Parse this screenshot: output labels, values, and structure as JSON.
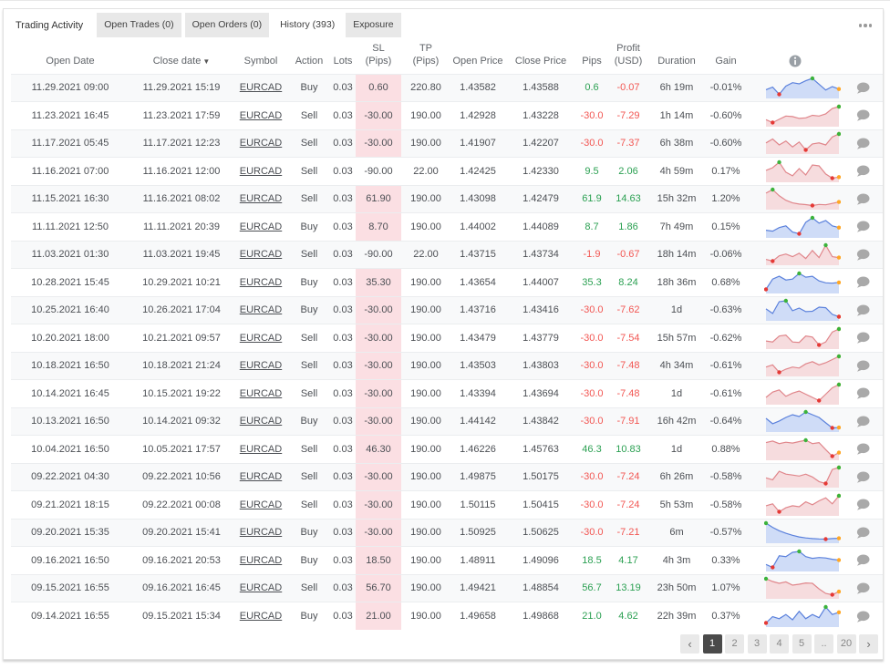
{
  "tabbar": {
    "title": "Trading Activity",
    "tabs": [
      {
        "label": "Open Trades (0)",
        "active": false
      },
      {
        "label": "Open Orders (0)",
        "active": false
      },
      {
        "label": "History (393)",
        "active": true
      },
      {
        "label": "Exposure",
        "active": false
      }
    ]
  },
  "table": {
    "headers": {
      "open_date": "Open Date",
      "close_date": "Close date",
      "symbol": "Symbol",
      "action": "Action",
      "lots": "Lots",
      "sl": "SL\n(Pips)",
      "tp": "TP\n(Pips)",
      "open_price": "Open Price",
      "close_price": "Close Price",
      "pips": "Pips",
      "profit": "Profit\n(USD)",
      "duration": "Duration",
      "gain": "Gain"
    },
    "sort_indicator_on": "close_date",
    "rows": [
      {
        "open_date": "11.29.2021 09:00",
        "close_date": "11.29.2021 15:19",
        "symbol": "EURCAD",
        "action": "Buy",
        "lots": "0.03",
        "sl": "0.60",
        "sl_hl": true,
        "tp": "220.80",
        "open_price": "1.43582",
        "close_price": "1.43588",
        "pips": "0.6",
        "profit": "-0.07",
        "duration": "6h 19m",
        "gain": "-0.01%",
        "spark": {
          "direction": "buy",
          "values": [
            42,
            55,
            18,
            60,
            78,
            72,
            88,
            100,
            70,
            40,
            58,
            45
          ]
        }
      },
      {
        "open_date": "11.23.2021 16:45",
        "close_date": "11.23.2021 17:59",
        "symbol": "EURCAD",
        "action": "Sell",
        "lots": "0.03",
        "sl": "-30.00",
        "sl_hl": true,
        "tp": "190.00",
        "open_price": "1.42928",
        "close_price": "1.43228",
        "pips": "-30.0",
        "profit": "-7.29",
        "duration": "1h 14m",
        "gain": "-0.60%",
        "spark": {
          "direction": "sell",
          "values": [
            28,
            12,
            30,
            48,
            45,
            35,
            38,
            52,
            48,
            60,
            90,
            100
          ]
        }
      },
      {
        "open_date": "11.17.2021 05:45",
        "close_date": "11.17.2021 12:23",
        "symbol": "EURCAD",
        "action": "Sell",
        "lots": "0.03",
        "sl": "-30.00",
        "sl_hl": true,
        "tp": "190.00",
        "open_price": "1.41907",
        "close_price": "1.42207",
        "pips": "-30.0",
        "profit": "-7.37",
        "duration": "6h 38m",
        "gain": "-0.60%",
        "spark": {
          "direction": "sell",
          "values": [
            55,
            75,
            45,
            65,
            35,
            60,
            20,
            50,
            55,
            45,
            85,
            100
          ]
        }
      },
      {
        "open_date": "11.16.2021 07:00",
        "close_date": "11.16.2021 12:00",
        "symbol": "EURCAD",
        "action": "Sell",
        "lots": "0.03",
        "sl": "-90.00",
        "sl_hl": false,
        "tp": "22.00",
        "open_price": "1.42425",
        "close_price": "1.42330",
        "pips": "9.5",
        "profit": "2.06",
        "duration": "4h 59m",
        "gain": "0.17%",
        "spark": {
          "direction": "sell",
          "values": [
            55,
            70,
            100,
            45,
            25,
            65,
            30,
            85,
            80,
            35,
            12,
            18
          ]
        }
      },
      {
        "open_date": "11.15.2021 16:30",
        "close_date": "11.16.2021 08:02",
        "symbol": "EURCAD",
        "action": "Sell",
        "lots": "0.03",
        "sl": "61.90",
        "sl_hl": true,
        "tp": "190.00",
        "open_price": "1.43098",
        "close_price": "1.42479",
        "pips": "61.9",
        "profit": "14.63",
        "duration": "15h 32m",
        "gain": "1.20%",
        "spark": {
          "direction": "sell",
          "values": [
            80,
            100,
            65,
            40,
            25,
            18,
            15,
            10,
            16,
            14,
            22,
            30
          ]
        }
      },
      {
        "open_date": "11.11.2021 12:50",
        "close_date": "11.11.2021 20:39",
        "symbol": "EURCAD",
        "action": "Buy",
        "lots": "0.03",
        "sl": "8.70",
        "sl_hl": true,
        "tp": "190.00",
        "open_price": "1.44002",
        "close_price": "1.44089",
        "pips": "8.7",
        "profit": "1.86",
        "duration": "7h 49m",
        "gain": "0.15%",
        "spark": {
          "direction": "buy",
          "values": [
            30,
            25,
            45,
            55,
            20,
            10,
            75,
            100,
            70,
            85,
            55,
            45
          ]
        }
      },
      {
        "open_date": "11.03.2021 01:30",
        "close_date": "11.03.2021 19:45",
        "symbol": "EURCAD",
        "action": "Sell",
        "lots": "0.03",
        "sl": "-90.00",
        "sl_hl": false,
        "tp": "22.00",
        "open_price": "1.43715",
        "close_price": "1.43734",
        "pips": "-1.9",
        "profit": "-0.67",
        "duration": "18h 14m",
        "gain": "-0.06%",
        "spark": {
          "direction": "sell",
          "values": [
            20,
            10,
            40,
            50,
            35,
            55,
            25,
            70,
            30,
            100,
            35,
            30
          ]
        }
      },
      {
        "open_date": "10.28.2021 15:45",
        "close_date": "10.29.2021 10:21",
        "symbol": "EURCAD",
        "action": "Buy",
        "lots": "0.03",
        "sl": "35.30",
        "sl_hl": true,
        "tp": "190.00",
        "open_price": "1.43654",
        "close_price": "1.44007",
        "pips": "35.3",
        "profit": "8.24",
        "duration": "18h 36m",
        "gain": "0.68%",
        "spark": {
          "direction": "buy",
          "values": [
            15,
            70,
            85,
            65,
            70,
            100,
            80,
            85,
            60,
            50,
            48,
            52
          ]
        }
      },
      {
        "open_date": "10.25.2021 16:40",
        "close_date": "10.26.2021 17:04",
        "symbol": "EURCAD",
        "action": "Buy",
        "lots": "0.03",
        "sl": "-30.00",
        "sl_hl": true,
        "tp": "190.00",
        "open_price": "1.43716",
        "close_price": "1.43416",
        "pips": "-30.0",
        "profit": "-7.62",
        "duration": "1d",
        "gain": "-0.63%",
        "spark": {
          "direction": "buy",
          "values": [
            55,
            30,
            95,
            100,
            45,
            60,
            40,
            42,
            65,
            62,
            25,
            12
          ]
        }
      },
      {
        "open_date": "10.20.2021 18:00",
        "close_date": "10.21.2021 09:57",
        "symbol": "EURCAD",
        "action": "Sell",
        "lots": "0.03",
        "sl": "-30.00",
        "sl_hl": true,
        "tp": "190.00",
        "open_price": "1.43479",
        "close_price": "1.43779",
        "pips": "-30.0",
        "profit": "-7.54",
        "duration": "15h 57m",
        "gain": "-0.62%",
        "spark": {
          "direction": "sell",
          "values": [
            35,
            30,
            60,
            65,
            30,
            28,
            60,
            55,
            15,
            30,
            80,
            95
          ]
        }
      },
      {
        "open_date": "10.18.2021 16:50",
        "close_date": "10.18.2021 21:24",
        "symbol": "EURCAD",
        "action": "Sell",
        "lots": "0.03",
        "sl": "-30.00",
        "sl_hl": true,
        "tp": "190.00",
        "open_price": "1.43503",
        "close_price": "1.43803",
        "pips": "-30.0",
        "profit": "-7.48",
        "duration": "4h 34m",
        "gain": "-0.61%",
        "spark": {
          "direction": "sell",
          "values": [
            45,
            55,
            20,
            35,
            45,
            40,
            60,
            70,
            55,
            65,
            80,
            95
          ]
        }
      },
      {
        "open_date": "10.14.2021 16:45",
        "close_date": "10.15.2021 19:22",
        "symbol": "EURCAD",
        "action": "Sell",
        "lots": "0.03",
        "sl": "-30.00",
        "sl_hl": true,
        "tp": "190.00",
        "open_price": "1.43394",
        "close_price": "1.43694",
        "pips": "-30.0",
        "profit": "-7.48",
        "duration": "1d",
        "gain": "-0.61%",
        "spark": {
          "direction": "sell",
          "values": [
            30,
            55,
            65,
            35,
            50,
            60,
            45,
            30,
            15,
            45,
            75,
            90
          ]
        }
      },
      {
        "open_date": "10.13.2021 16:50",
        "close_date": "10.14.2021 09:32",
        "symbol": "EURCAD",
        "action": "Buy",
        "lots": "0.03",
        "sl": "-30.00",
        "sl_hl": true,
        "tp": "190.00",
        "open_price": "1.44142",
        "close_price": "1.43842",
        "pips": "-30.0",
        "profit": "-7.91",
        "duration": "16h 42m",
        "gain": "-0.64%",
        "spark": {
          "direction": "buy",
          "values": [
            65,
            35,
            50,
            70,
            85,
            75,
            100,
            85,
            70,
            40,
            12,
            14
          ]
        }
      },
      {
        "open_date": "10.04.2021 16:50",
        "close_date": "10.05.2021 17:57",
        "symbol": "EURCAD",
        "action": "Sell",
        "lots": "0.03",
        "sl": "46.30",
        "sl_hl": true,
        "tp": "190.00",
        "open_price": "1.46226",
        "close_price": "1.45763",
        "pips": "46.3",
        "profit": "10.83",
        "duration": "1d",
        "gain": "0.88%",
        "spark": {
          "direction": "sell",
          "values": [
            80,
            88,
            75,
            82,
            78,
            85,
            92,
            75,
            80,
            45,
            12,
            30
          ]
        }
      },
      {
        "open_date": "09.22.2021 04:30",
        "close_date": "09.22.2021 10:56",
        "symbol": "EURCAD",
        "action": "Sell",
        "lots": "0.03",
        "sl": "-30.00",
        "sl_hl": true,
        "tp": "190.00",
        "open_price": "1.49875",
        "close_price": "1.50175",
        "pips": "-30.0",
        "profit": "-7.24",
        "duration": "6h 26m",
        "gain": "-0.58%",
        "spark": {
          "direction": "sell",
          "values": [
            40,
            30,
            75,
            60,
            55,
            50,
            60,
            45,
            20,
            10,
            85,
            95
          ]
        }
      },
      {
        "open_date": "09.21.2021 18:15",
        "close_date": "09.22.2021 00:08",
        "symbol": "EURCAD",
        "action": "Sell",
        "lots": "0.03",
        "sl": "-30.00",
        "sl_hl": true,
        "tp": "190.00",
        "open_price": "1.50115",
        "close_price": "1.50415",
        "pips": "-30.0",
        "profit": "-7.24",
        "duration": "5h 53m",
        "gain": "-0.58%",
        "spark": {
          "direction": "sell",
          "values": [
            45,
            55,
            15,
            35,
            45,
            40,
            65,
            50,
            70,
            85,
            55,
            95
          ]
        }
      },
      {
        "open_date": "09.20.2021 15:35",
        "close_date": "09.20.2021 15:41",
        "symbol": "EURCAD",
        "action": "Buy",
        "lots": "0.03",
        "sl": "-30.00",
        "sl_hl": true,
        "tp": "190.00",
        "open_price": "1.50925",
        "close_price": "1.50625",
        "pips": "-30.0",
        "profit": "-7.21",
        "duration": "6m",
        "gain": "-0.57%",
        "spark": {
          "direction": "buy",
          "values": [
            100,
            75,
            55,
            40,
            28,
            18,
            12,
            8,
            6,
            5,
            8,
            10
          ]
        }
      },
      {
        "open_date": "09.16.2021 16:50",
        "close_date": "09.16.2021 20:53",
        "symbol": "EURCAD",
        "action": "Buy",
        "lots": "0.03",
        "sl": "18.50",
        "sl_hl": true,
        "tp": "190.00",
        "open_price": "1.48911",
        "close_price": "1.49096",
        "pips": "18.5",
        "profit": "4.17",
        "duration": "4h 3m",
        "gain": "0.33%",
        "spark": {
          "direction": "buy",
          "values": [
            25,
            8,
            75,
            70,
            95,
            100,
            70,
            60,
            65,
            62,
            55,
            50
          ]
        }
      },
      {
        "open_date": "09.15.2021 16:55",
        "close_date": "09.16.2021 16:45",
        "symbol": "EURCAD",
        "action": "Sell",
        "lots": "0.03",
        "sl": "56.70",
        "sl_hl": true,
        "tp": "190.00",
        "open_price": "1.49421",
        "close_price": "1.48854",
        "pips": "56.7",
        "profit": "13.19",
        "duration": "23h 50m",
        "gain": "1.07%",
        "spark": {
          "direction": "sell",
          "values": [
            95,
            80,
            70,
            78,
            60,
            65,
            72,
            70,
            40,
            15,
            8,
            25
          ]
        }
      },
      {
        "open_date": "09.14.2021 16:55",
        "close_date": "09.15.2021 15:34",
        "symbol": "EURCAD",
        "action": "Buy",
        "lots": "0.03",
        "sl": "21.00",
        "sl_hl": true,
        "tp": "190.00",
        "open_price": "1.49658",
        "close_price": "1.49868",
        "pips": "21.0",
        "profit": "4.62",
        "duration": "22h 39m",
        "gain": "0.37%",
        "spark": {
          "direction": "buy",
          "values": [
            15,
            45,
            35,
            55,
            30,
            70,
            35,
            55,
            40,
            90,
            55,
            65
          ]
        }
      }
    ]
  },
  "pagination": {
    "prev": "‹",
    "next": "›",
    "pages": [
      "1",
      "2",
      "3",
      "4",
      "5",
      "..",
      "20"
    ],
    "active": "1"
  },
  "colors": {
    "positive": "#2ba052",
    "negative": "#f25652",
    "sl_highlight": "#fbdfe3",
    "buy_line": "#5b81dc",
    "buy_fill": "#cfdcf7",
    "sell_line": "#e0868b",
    "sell_fill": "#f6dcde",
    "dot_max": "#3bb33b",
    "dot_min": "#e53935",
    "dot_last": "#ffa726"
  }
}
